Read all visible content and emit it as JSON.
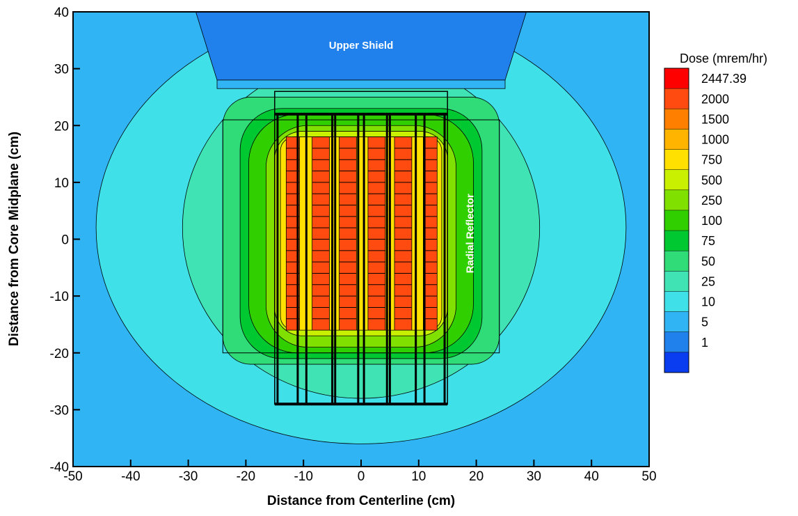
{
  "chart_data": {
    "type": "contour",
    "x_label": "Distance from Centerline (cm)",
    "y_label": "Distance from Core Midplane (cm)",
    "xlim": [
      -50,
      50
    ],
    "xticks": [
      -50,
      -40,
      -30,
      -20,
      -10,
      0,
      10,
      20,
      30,
      40,
      50
    ],
    "ylim": [
      -40,
      40
    ],
    "yticks": [
      -40,
      -30,
      -20,
      -10,
      0,
      10,
      20,
      30,
      40
    ],
    "annotations": [
      "Upper Shield",
      "Radial Reflector"
    ],
    "colorbar": {
      "title": "Dose (mrem/hr)",
      "levels": [
        2447.39,
        2000,
        1500,
        1000,
        750,
        500,
        250,
        100,
        75,
        50,
        25,
        10,
        5,
        1
      ],
      "colors": [
        "#ff0000",
        "#ff4a10",
        "#ff8000",
        "#ffb400",
        "#ffe000",
        "#c8f000",
        "#80e000",
        "#30d000",
        "#00c830",
        "#30dc78",
        "#40e4b4",
        "#40e0e8",
        "#30b4f4",
        "#2080ec",
        "#0a3cf0"
      ]
    }
  }
}
